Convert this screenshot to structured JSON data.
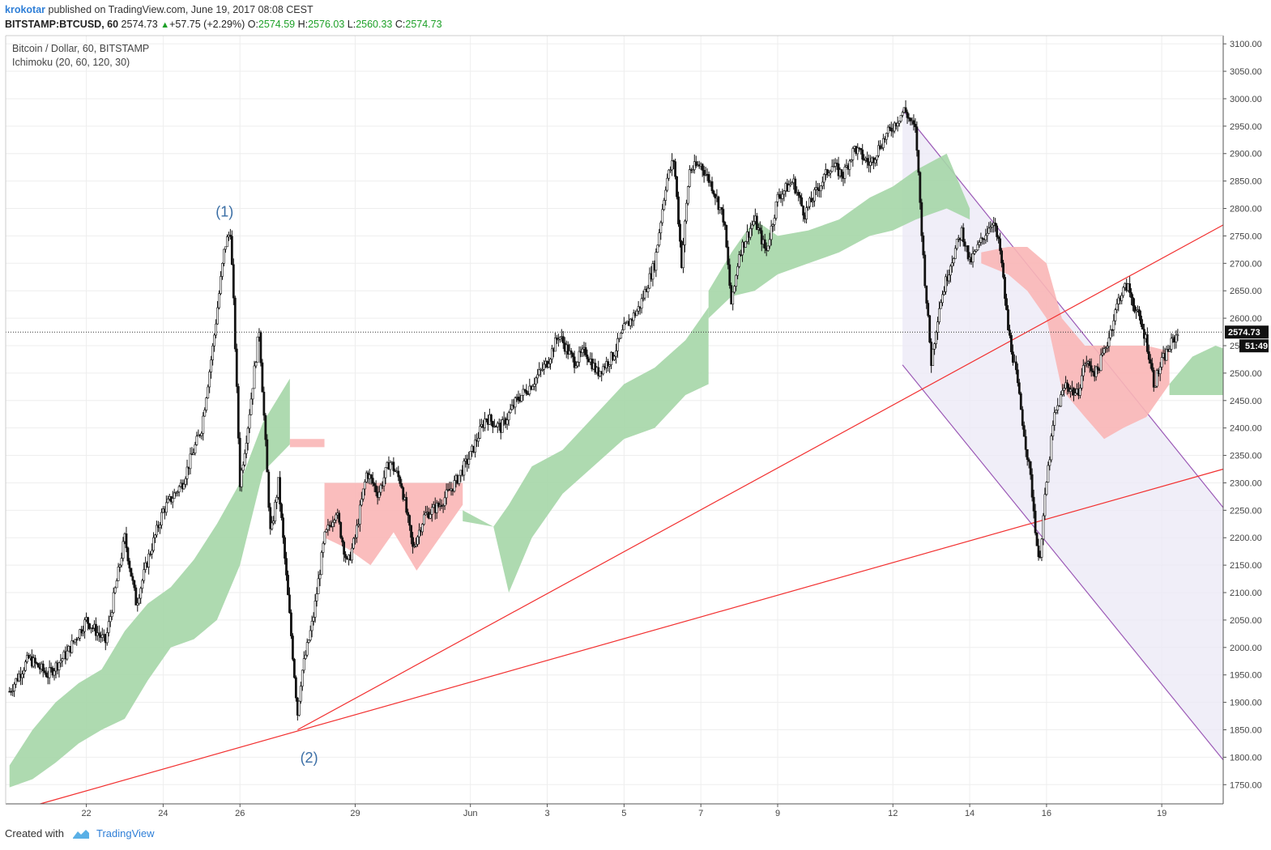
{
  "header": {
    "publisher": "krokotar",
    "published_text": "published on TradingView.com, June 19, 2017 08:08 CEST",
    "symbol": "BITSTAMP:BTCUSD, 60",
    "last": "2574.73",
    "change": "+57.75 (+2.29%)",
    "o_label": "O:",
    "o_value": "2574.59",
    "h_label": "H:",
    "h_value": "2576.03",
    "l_label": "L:",
    "l_value": "2560.33",
    "c_label": "C:",
    "c_value": "2574.73"
  },
  "legend": {
    "title": "Bitcoin / Dollar, 60, BITSTAMP",
    "indicator": "Ichimoku (20, 60, 120, 30)"
  },
  "footer": {
    "created_with": "Created with",
    "brand": "TradingView"
  },
  "colors": {
    "cloud_bull": "#a5d6a7",
    "cloud_bear": "#f9b6b6",
    "trendline": "#f23030",
    "channel": "#9b59b6",
    "channel_fill": "#ebe8f5",
    "candle": "#111111"
  },
  "chart_data": {
    "type": "candlestick",
    "title": "Bitcoin / Dollar, 60, BITSTAMP",
    "ylim": [
      1715,
      3115
    ],
    "y_ticks": [
      "1750.00",
      "1800.00",
      "1850.00",
      "1900.00",
      "1950.00",
      "2000.00",
      "2050.00",
      "2100.00",
      "2150.00",
      "2200.00",
      "2250.00",
      "2300.00",
      "2350.00",
      "2400.00",
      "2450.00",
      "2500.00",
      "2550.00",
      "2600.00",
      "2650.00",
      "2700.00",
      "2750.00",
      "2800.00",
      "2850.00",
      "2900.00",
      "2950.00",
      "3000.00",
      "3050.00",
      "3100.00"
    ],
    "x_ticks": [
      {
        "label": "22",
        "day": 22
      },
      {
        "label": "24",
        "day": 24
      },
      {
        "label": "26",
        "day": 26
      },
      {
        "label": "29",
        "day": 29
      },
      {
        "label": "Jun",
        "day": 32
      },
      {
        "label": "3",
        "day": 34
      },
      {
        "label": "5",
        "day": 36
      },
      {
        "label": "7",
        "day": 38
      },
      {
        "label": "9",
        "day": 40
      },
      {
        "label": "12",
        "day": 43
      },
      {
        "label": "14",
        "day": 45
      },
      {
        "label": "16",
        "day": 47
      },
      {
        "label": "19",
        "day": 50
      }
    ],
    "x_unit_note": "days counted from May 1, 2017 (June 1 = 32)",
    "current_price": "2574.73",
    "countdown": "51:49",
    "price_path": [
      [
        20.0,
        1920
      ],
      [
        20.5,
        1980
      ],
      [
        21.0,
        1950
      ],
      [
        21.5,
        1990
      ],
      [
        22.0,
        2050
      ],
      [
        22.5,
        2010
      ],
      [
        23.0,
        2200
      ],
      [
        23.3,
        2080
      ],
      [
        23.6,
        2160
      ],
      [
        24.0,
        2250
      ],
      [
        24.5,
        2300
      ],
      [
        25.0,
        2400
      ],
      [
        25.3,
        2550
      ],
      [
        25.6,
        2730
      ],
      [
        25.75,
        2760
      ],
      [
        25.85,
        2600
      ],
      [
        26.0,
        2300
      ],
      [
        26.2,
        2400
      ],
      [
        26.5,
        2580
      ],
      [
        26.8,
        2200
      ],
      [
        27.0,
        2300
      ],
      [
        27.3,
        2050
      ],
      [
        27.5,
        1880
      ],
      [
        27.6,
        1950
      ],
      [
        27.9,
        2050
      ],
      [
        28.2,
        2200
      ],
      [
        28.5,
        2250
      ],
      [
        28.8,
        2150
      ],
      [
        29.0,
        2200
      ],
      [
        29.3,
        2320
      ],
      [
        29.6,
        2280
      ],
      [
        29.9,
        2340
      ],
      [
        30.2,
        2300
      ],
      [
        30.5,
        2180
      ],
      [
        30.8,
        2240
      ],
      [
        31.2,
        2260
      ],
      [
        31.6,
        2300
      ],
      [
        32.0,
        2350
      ],
      [
        32.4,
        2420
      ],
      [
        32.8,
        2400
      ],
      [
        33.2,
        2450
      ],
      [
        33.6,
        2480
      ],
      [
        34.0,
        2520
      ],
      [
        34.3,
        2570
      ],
      [
        34.7,
        2520
      ],
      [
        35.0,
        2540
      ],
      [
        35.3,
        2500
      ],
      [
        35.7,
        2530
      ],
      [
        36.0,
        2580
      ],
      [
        36.4,
        2620
      ],
      [
        36.8,
        2700
      ],
      [
        37.1,
        2850
      ],
      [
        37.3,
        2890
      ],
      [
        37.5,
        2700
      ],
      [
        37.7,
        2870
      ],
      [
        38.0,
        2880
      ],
      [
        38.3,
        2840
      ],
      [
        38.6,
        2780
      ],
      [
        38.8,
        2620
      ],
      [
        39.0,
        2720
      ],
      [
        39.4,
        2780
      ],
      [
        39.7,
        2720
      ],
      [
        40.0,
        2820
      ],
      [
        40.4,
        2850
      ],
      [
        40.7,
        2790
      ],
      [
        41.0,
        2830
      ],
      [
        41.4,
        2880
      ],
      [
        41.7,
        2860
      ],
      [
        42.0,
        2910
      ],
      [
        42.4,
        2880
      ],
      [
        42.7,
        2920
      ],
      [
        43.0,
        2950
      ],
      [
        43.3,
        2980
      ],
      [
        43.6,
        2940
      ],
      [
        43.8,
        2700
      ],
      [
        44.0,
        2520
      ],
      [
        44.2,
        2620
      ],
      [
        44.5,
        2700
      ],
      [
        44.8,
        2760
      ],
      [
        45.0,
        2700
      ],
      [
        45.3,
        2740
      ],
      [
        45.6,
        2780
      ],
      [
        45.8,
        2720
      ],
      [
        46.0,
        2580
      ],
      [
        46.2,
        2500
      ],
      [
        46.4,
        2400
      ],
      [
        46.6,
        2300
      ],
      [
        46.8,
        2150
      ],
      [
        47.0,
        2300
      ],
      [
        47.2,
        2420
      ],
      [
        47.5,
        2480
      ],
      [
        47.8,
        2460
      ],
      [
        48.0,
        2520
      ],
      [
        48.3,
        2500
      ],
      [
        48.6,
        2560
      ],
      [
        48.9,
        2640
      ],
      [
        49.1,
        2660
      ],
      [
        49.4,
        2600
      ],
      [
        49.6,
        2560
      ],
      [
        49.8,
        2480
      ],
      [
        50.0,
        2520
      ],
      [
        50.3,
        2560
      ],
      [
        50.45,
        2575
      ]
    ],
    "series": [
      {
        "name": "Ichimoku cloud",
        "note": "green = bullish, red = bearish",
        "spans": [
          {
            "x": [
              20.0,
              20.6,
              21.2,
              21.8,
              22.4,
              23.0,
              23.6,
              24.2,
              24.8,
              25.4,
              26.0,
              26.6,
              27.3
            ],
            "top": [
              1785,
              1850,
              1900,
              1935,
              1960,
              2030,
              2080,
              2110,
              2160,
              2225,
              2300,
              2410,
              2490
            ],
            "bottom": [
              1745,
              1760,
              1790,
              1825,
              1850,
              1870,
              1940,
              2000,
              2015,
              2050,
              2150,
              2320,
              2370
            ],
            "color": "bull"
          },
          {
            "x": [
              27.3,
              27.8,
              28.2
            ],
            "top": [
              2380,
              2380,
              2380
            ],
            "bottom": [
              2365,
              2365,
              2365
            ],
            "color": "bear"
          },
          {
            "x": [
              28.2,
              28.8,
              29.4,
              30.0,
              30.6,
              31.2,
              31.8
            ],
            "top": [
              2300,
              2300,
              2300,
              2300,
              2300,
              2300,
              2300
            ],
            "bottom": [
              2200,
              2180,
              2150,
              2210,
              2140,
              2200,
              2260
            ],
            "color": "bear"
          },
          {
            "x": [
              31.8,
              32.6,
              33.0,
              33.6,
              34.4,
              35.2,
              36.0,
              36.8,
              37.6,
              38.2
            ],
            "top": [
              2250,
              2220,
              2260,
              2330,
              2360,
              2420,
              2480,
              2510,
              2560,
              2620
            ],
            "bottom": [
              2230,
              2220,
              2100,
              2200,
              2280,
              2330,
              2380,
              2400,
              2460,
              2480
            ],
            "color": "bull"
          },
          {
            "x": [
              38.2,
              38.8,
              39.4,
              40.0,
              40.8,
              41.6,
              42.4,
              43.0,
              43.6,
              44.4,
              45.0
            ],
            "top": [
              2650,
              2720,
              2780,
              2750,
              2760,
              2780,
              2820,
              2840,
              2870,
              2900,
              2800
            ],
            "bottom": [
              2600,
              2640,
              2650,
              2680,
              2700,
              2720,
              2750,
              2760,
              2780,
              2800,
              2780
            ],
            "color": "bull"
          },
          {
            "x": [
              45.3,
              46.0,
              46.5,
              47.0,
              47.4,
              48.0,
              48.5,
              49.0,
              49.6,
              50.2
            ],
            "top": [
              2720,
              2730,
              2730,
              2700,
              2600,
              2550,
              2550,
              2550,
              2550,
              2540
            ],
            "bottom": [
              2700,
              2680,
              2650,
              2600,
              2470,
              2420,
              2380,
              2400,
              2420,
              2480
            ],
            "color": "bear"
          },
          {
            "x": [
              50.2,
              50.8,
              51.4,
              51.6
            ],
            "top": [
              2480,
              2530,
              2550,
              2545
            ],
            "bottom": [
              2460,
              2460,
              2460,
              2460
            ],
            "color": "bull"
          }
        ]
      }
    ],
    "annotations": [
      {
        "text": "(1)",
        "x": 25.6,
        "y": 2785
      },
      {
        "text": "(2)",
        "x": 27.8,
        "y": 1790
      }
    ],
    "trendlines": [
      {
        "name": "upper support",
        "from": [
          27.5,
          1850
        ],
        "to": [
          51.6,
          2770
        ],
        "color": "trendline"
      },
      {
        "name": "lower support",
        "from": [
          20.8,
          1715
        ],
        "to": [
          51.6,
          2325
        ],
        "color": "trendline"
      }
    ],
    "channel": {
      "upper": {
        "from": [
          43.25,
          2980
        ],
        "to": [
          51.6,
          2255
        ]
      },
      "lower": {
        "from": [
          43.25,
          2515
        ],
        "to": [
          51.6,
          1795
        ]
      },
      "color": "channel"
    }
  }
}
